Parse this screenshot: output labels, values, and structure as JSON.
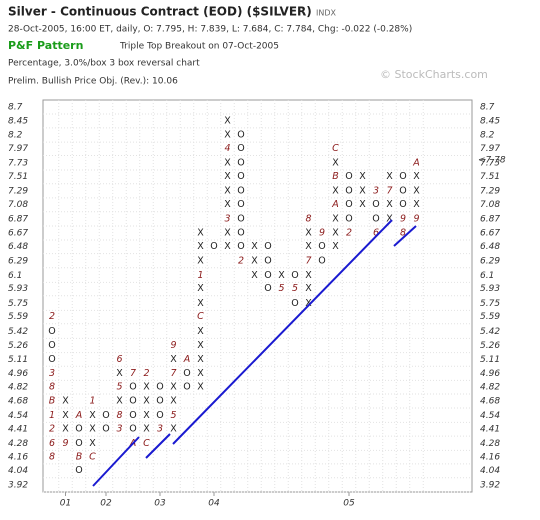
{
  "chart_data": {
    "type": "pnf",
    "title": "Silver - Continuous Contract (EOD) ($SILVER)",
    "exchange": "INDX",
    "subtitle": "28-Oct-2005, 16:00 ET, daily, O: 7.795, H: 7.839, L: 7.684, C: 7.784, Chg: -0.022 (-0.28%)",
    "pattern_label": "P&F Pattern",
    "pattern": "Triple Top Breakout on 07-Oct-2005",
    "box_setting": "Percentage, 3.0%/box 3 box reversal chart",
    "price_objective": "Prelim. Bullish Price Obj. (Rev.): 10.06",
    "watermark": "© StockCharts.com",
    "log_scale": true,
    "grid": true,
    "ylim": [
      3.92,
      8.7
    ],
    "yticks": [
      8.7,
      8.45,
      8.2,
      7.97,
      7.73,
      7.51,
      7.29,
      7.08,
      6.87,
      6.67,
      6.48,
      6.29,
      6.1,
      5.93,
      5.75,
      5.59,
      5.42,
      5.26,
      5.11,
      4.96,
      4.82,
      4.68,
      4.54,
      4.41,
      4.28,
      4.16,
      4.04,
      3.92
    ],
    "highlight_ytick": 7.73,
    "highlight_color": "#b22222",
    "last_price": {
      "value": 7.78,
      "label": "<7.78"
    },
    "box_color": "#222222",
    "month_color": "#8b1a1a",
    "categories": [
      null,
      "01",
      null,
      null,
      "02",
      null,
      null,
      null,
      "03",
      null,
      null,
      null,
      "04",
      null,
      null,
      null,
      null,
      null,
      null,
      null,
      null,
      null,
      "05",
      null,
      null,
      null,
      null,
      null
    ],
    "columns": [
      {
        "low": 4.16,
        "boxes": [
          "8",
          "6",
          "2",
          "1",
          "B",
          "8",
          "3",
          "O",
          "O",
          "O",
          "2"
        ]
      },
      {
        "low": 4.28,
        "boxes": [
          "9",
          "X",
          "X",
          "X"
        ]
      },
      {
        "low": 4.04,
        "boxes": [
          "O",
          "B",
          "O",
          "O",
          "A"
        ]
      },
      {
        "low": 4.16,
        "boxes": [
          "C",
          "X",
          "X",
          "X",
          "1"
        ]
      },
      {
        "low": 4.41,
        "boxes": [
          "O",
          "O"
        ]
      },
      {
        "low": 4.41,
        "boxes": [
          "3",
          "8",
          "X",
          "5",
          "X",
          "6"
        ]
      },
      {
        "low": 4.28,
        "boxes": [
          "A",
          "O",
          "O",
          "O",
          "O",
          "7"
        ]
      },
      {
        "low": 4.28,
        "boxes": [
          "C",
          "X",
          "X",
          "X",
          "X",
          "2"
        ]
      },
      {
        "low": 4.41,
        "boxes": [
          "3",
          "O",
          "O",
          "O"
        ]
      },
      {
        "low": 4.41,
        "boxes": [
          "X",
          "5",
          "X",
          "X",
          "7",
          "X",
          "9"
        ]
      },
      {
        "low": 4.82,
        "boxes": [
          "O",
          "O",
          "A"
        ]
      },
      {
        "low": 4.82,
        "boxes": [
          "X",
          "X",
          "X",
          "X",
          "X",
          "C",
          "X",
          "X",
          "1",
          "X",
          "X",
          "X"
        ]
      },
      {
        "low": 6.48,
        "boxes": [
          "O"
        ]
      },
      {
        "low": 6.48,
        "boxes": [
          "X",
          "X",
          "3",
          "X",
          "X",
          "X",
          "X",
          "4",
          "X",
          "X"
        ]
      },
      {
        "low": 6.29,
        "boxes": [
          "2",
          "O",
          "O",
          "O",
          "O",
          "O",
          "O",
          "O",
          "O",
          "O"
        ]
      },
      {
        "low": 6.1,
        "boxes": [
          "X",
          "X",
          "X"
        ]
      },
      {
        "low": 5.93,
        "boxes": [
          "O",
          "O",
          "O",
          "O"
        ]
      },
      {
        "low": 5.93,
        "boxes": [
          "5",
          "X"
        ]
      },
      {
        "low": 5.75,
        "boxes": [
          "O",
          "5",
          "O"
        ]
      },
      {
        "low": 5.75,
        "boxes": [
          "X",
          "X",
          "X",
          "7",
          "X",
          "X",
          "8"
        ]
      },
      {
        "low": 6.29,
        "boxes": [
          "O",
          "O",
          "9"
        ]
      },
      {
        "low": 6.48,
        "boxes": [
          "X",
          "X",
          "X",
          "A",
          "X",
          "B",
          "X",
          "C"
        ]
      },
      {
        "low": 6.67,
        "boxes": [
          "2",
          "O",
          "O",
          "O",
          "O"
        ]
      },
      {
        "low": 7.08,
        "boxes": [
          "X",
          "X",
          "X"
        ]
      },
      {
        "low": 6.67,
        "boxes": [
          "6",
          "O",
          "O",
          "3"
        ]
      },
      {
        "low": 6.87,
        "boxes": [
          "X",
          "X",
          "7",
          "X"
        ]
      },
      {
        "low": 6.67,
        "boxes": [
          "8",
          "9",
          "O",
          "O",
          "O"
        ]
      },
      {
        "low": 6.87,
        "boxes": [
          "9",
          "X",
          "X",
          "X",
          "A"
        ]
      }
    ]
  }
}
